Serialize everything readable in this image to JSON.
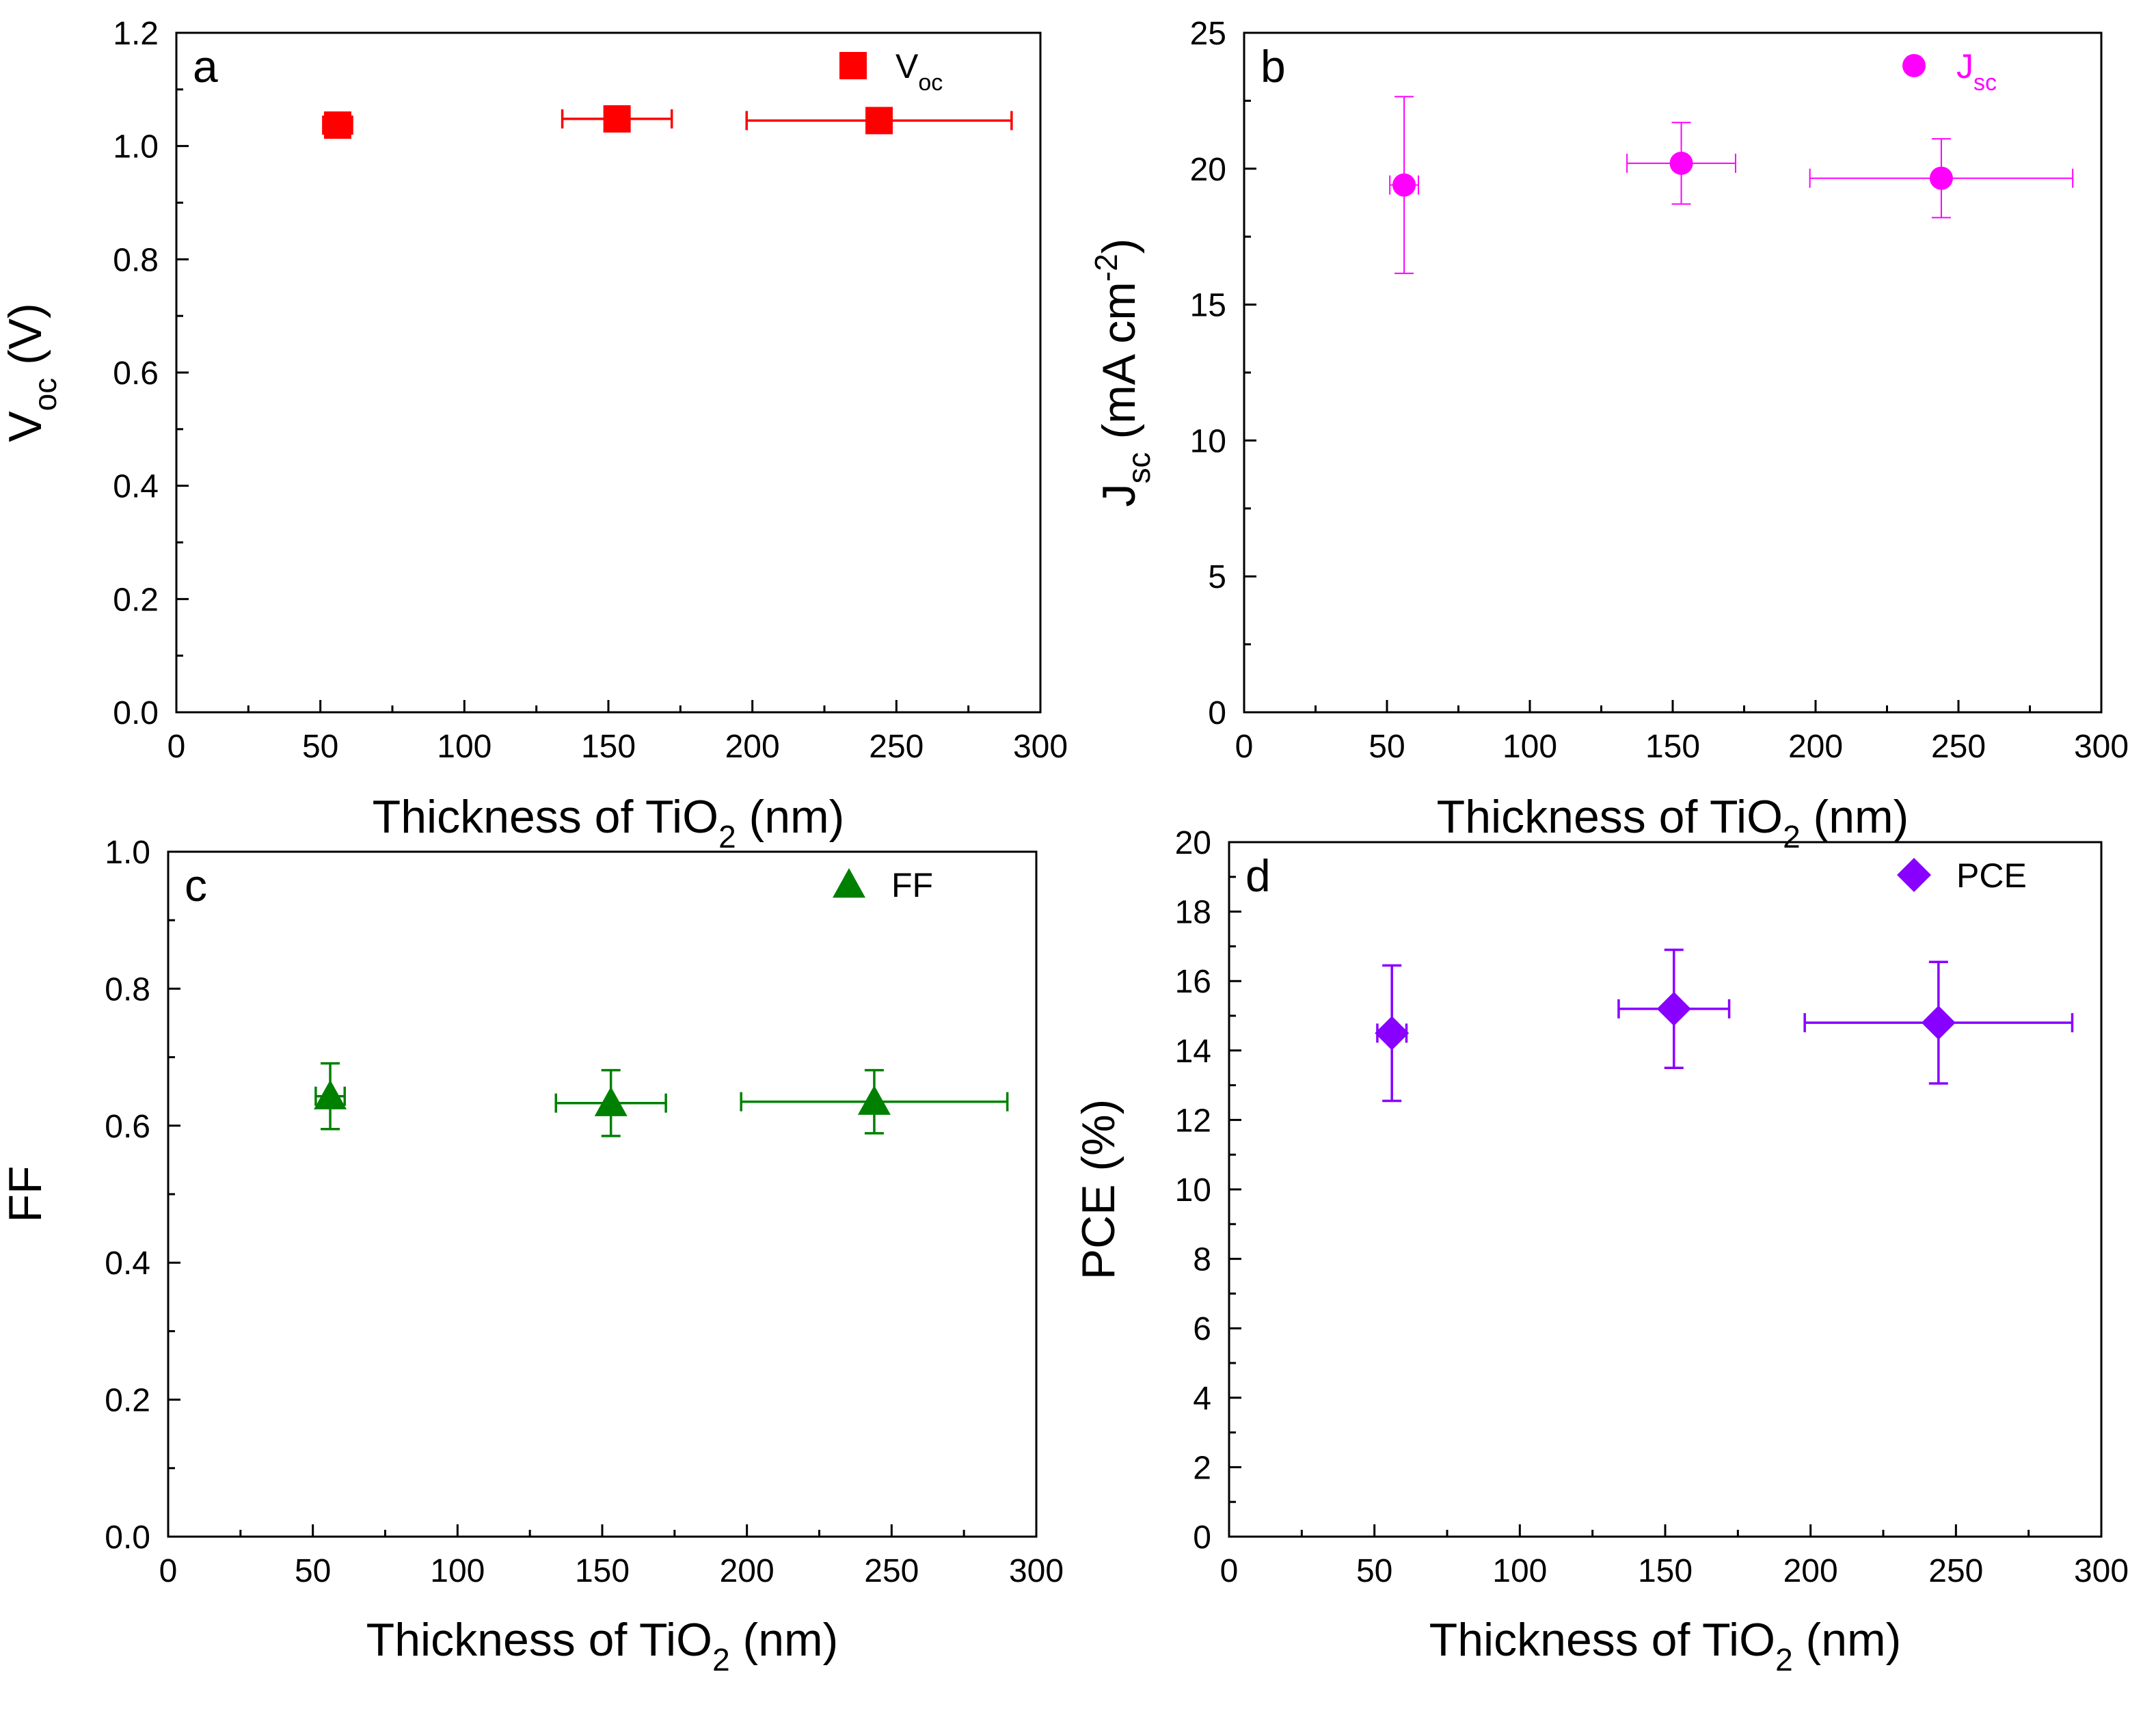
{
  "figure": {
    "description_free": true
  },
  "chart_data": [
    {
      "id": "a",
      "type": "scatter",
      "panel_label": "a",
      "xlabel": {
        "main": "Thickness of TiO",
        "sub": "2",
        "tail": " (nm)"
      },
      "ylabel": {
        "main": "V",
        "sub": "oc",
        "tail": " (V)"
      },
      "xlim": [
        0,
        300
      ],
      "ylim": [
        0,
        1.2
      ],
      "xticks": [
        0,
        50,
        100,
        150,
        200,
        250,
        300
      ],
      "xtick_labels": [
        "0",
        "50",
        "100",
        "150",
        "200",
        "250",
        "300"
      ],
      "yticks": [
        0,
        0.2,
        0.4,
        0.6,
        0.8,
        1.0,
        1.2
      ],
      "ytick_labels": [
        "0.0",
        "0.2",
        "0.4",
        "0.6",
        "0.8",
        "1.0",
        "1.2"
      ],
      "color": "#ff0000",
      "marker": "square",
      "legend": {
        "main": "V",
        "sub": "oc",
        "position": "top-right"
      },
      "series": [
        {
          "name": "Voc",
          "x": [
            56,
            153,
            244
          ],
          "y": [
            1.037,
            1.048,
            1.045
          ],
          "xerr": [
            5,
            19,
            46
          ],
          "yerr": [
            0.02,
            0.012,
            0.018
          ]
        }
      ]
    },
    {
      "id": "b",
      "type": "scatter",
      "panel_label": "b",
      "xlabel": {
        "main": "Thickness of TiO",
        "sub": "2",
        "tail": " (nm)"
      },
      "ylabel": {
        "main": "J",
        "sub": "sc",
        "tail": " (mA cm",
        "sup": "-2",
        "tail2": ")"
      },
      "xlim": [
        0,
        300
      ],
      "ylim": [
        0,
        25
      ],
      "xticks": [
        0,
        50,
        100,
        150,
        200,
        250,
        300
      ],
      "xtick_labels": [
        "0",
        "50",
        "100",
        "150",
        "200",
        "250",
        "300"
      ],
      "yticks": [
        0,
        5,
        10,
        15,
        20,
        25
      ],
      "ytick_labels": [
        "0",
        "5",
        "10",
        "15",
        "20",
        "25"
      ],
      "color": "#ff00ff",
      "marker": "circle",
      "legend": {
        "main": "J",
        "sub": "sc",
        "position": "top-right"
      },
      "series": [
        {
          "name": "Jsc",
          "x": [
            56,
            153,
            244
          ],
          "y": [
            19.4,
            20.2,
            19.65
          ],
          "xerr": [
            5,
            19,
            46
          ],
          "yerr": [
            3.25,
            1.5,
            1.45
          ]
        }
      ]
    },
    {
      "id": "c",
      "type": "scatter",
      "panel_label": "c",
      "xlabel": {
        "main": "Thickness of TiO",
        "sub": "2",
        "tail": " (nm)"
      },
      "ylabel": {
        "main": "FF",
        "sub": "",
        "tail": ""
      },
      "xlim": [
        0,
        300
      ],
      "ylim": [
        0,
        1.0
      ],
      "xticks": [
        0,
        50,
        100,
        150,
        200,
        250,
        300
      ],
      "xtick_labels": [
        "0",
        "50",
        "100",
        "150",
        "200",
        "250",
        "300"
      ],
      "yticks": [
        0,
        0.2,
        0.4,
        0.6,
        0.8,
        1.0
      ],
      "ytick_labels": [
        "0.0",
        "0.2",
        "0.4",
        "0.6",
        "0.8",
        "1.0"
      ],
      "color": "#008000",
      "marker": "triangle",
      "legend": {
        "main": "FF",
        "sub": "",
        "position": "top-right"
      },
      "series": [
        {
          "name": "FF",
          "x": [
            56,
            153,
            244
          ],
          "y": [
            0.643,
            0.633,
            0.635
          ],
          "xerr": [
            5,
            19,
            46
          ],
          "yerr": [
            0.048,
            0.048,
            0.046
          ]
        }
      ]
    },
    {
      "id": "d",
      "type": "scatter",
      "panel_label": "d",
      "xlabel": {
        "main": "Thickness of TiO",
        "sub": "2",
        "tail": " (nm)"
      },
      "ylabel": {
        "main": "PCE (%)",
        "sub": "",
        "tail": ""
      },
      "xlim": [
        0,
        300
      ],
      "ylim": [
        0,
        20
      ],
      "xticks": [
        0,
        50,
        100,
        150,
        200,
        250,
        300
      ],
      "xtick_labels": [
        "0",
        "50",
        "100",
        "150",
        "200",
        "250",
        "300"
      ],
      "yticks": [
        0,
        2,
        4,
        6,
        8,
        10,
        12,
        14,
        16,
        18,
        20
      ],
      "ytick_labels": [
        "0",
        "2",
        "4",
        "6",
        "8",
        "10",
        "12",
        "14",
        "16",
        "18",
        "20"
      ],
      "color": "#8800ff",
      "marker": "diamond",
      "legend": {
        "main": "PCE",
        "sub": "",
        "position": "top-right"
      },
      "series": [
        {
          "name": "PCE",
          "x": [
            56,
            153,
            244
          ],
          "y": [
            14.5,
            15.2,
            14.8
          ],
          "xerr": [
            5,
            19,
            46
          ],
          "yerr": [
            1.95,
            1.7,
            1.75
          ]
        }
      ]
    }
  ]
}
